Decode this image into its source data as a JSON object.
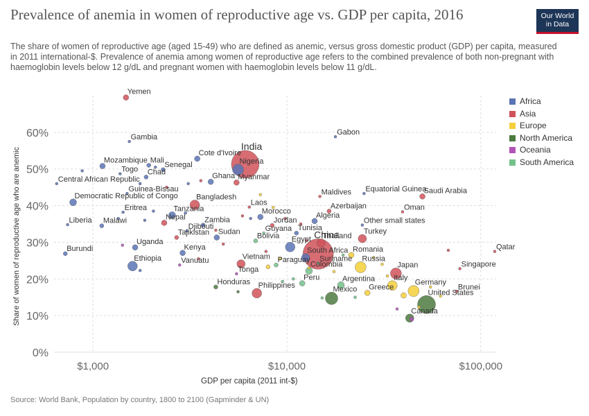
{
  "header": {
    "title": "Prevalence of anemia in women of reproductive age vs. GDP per capita, 2016",
    "subtitle": "The share of women of reproductive age (aged 15-49) who are defined as anemic, versus gross domestic product (GDP) per capita, measured in 2011 international-$. Prevalence of anemia among women of reproductive age refers to the combined prevalence of both non-pregnant with haemoglobin levels below 12 g/dL and pregnant women with haemoglobin levels below 11 g/dL.",
    "logo_line1": "Our World",
    "logo_line2": "in Data"
  },
  "footer": {
    "source": "Source: World Bank, Population by country, 1800 to 2100 (Gapminder & UN)"
  },
  "chart_data": {
    "type": "scatter",
    "title": "Prevalence of anemia in women of reproductive age vs. GDP per capita, 2016",
    "xlabel": "GDP per capita (2011 int-$)",
    "ylabel": "Share of women of reproductive age who are anemic",
    "x_scale": "log",
    "xlim": [
      630,
      120000
    ],
    "ylim": [
      0,
      70
    ],
    "x_ticks": [
      1000,
      10000,
      100000
    ],
    "x_tick_labels": [
      "$1,000",
      "$10,000",
      "$100,000"
    ],
    "y_ticks": [
      0,
      10,
      20,
      30,
      40,
      50,
      60
    ],
    "y_tick_labels": [
      "0%",
      "10%",
      "20%",
      "30%",
      "40%",
      "50%",
      "60%"
    ],
    "grid": true,
    "legend_position": "right",
    "series": [
      {
        "name": "Africa",
        "color": "#5b74b6"
      },
      {
        "name": "Asia",
        "color": "#d1525a"
      },
      {
        "name": "Europe",
        "color": "#f5cf3a"
      },
      {
        "name": "North America",
        "color": "#4c7a3f"
      },
      {
        "name": "Oceania",
        "color": "#b153b7"
      },
      {
        "name": "South America",
        "color": "#74c18a"
      }
    ],
    "points": [
      {
        "label": "Yemen",
        "x": 1480,
        "y": 69.5,
        "region": "Asia",
        "size": 4
      },
      {
        "label": "Gambia",
        "x": 1540,
        "y": 57.5,
        "region": "Africa",
        "size": 2
      },
      {
        "label": "Gabon",
        "x": 17800,
        "y": 58.8,
        "region": "Africa",
        "size": 2
      },
      {
        "label": "India",
        "x": 6100,
        "y": 51.3,
        "region": "Asia",
        "size": 20
      },
      {
        "label": "Cote d'Ivoire",
        "x": 3450,
        "y": 52.8,
        "region": "Africa",
        "size": 4
      },
      {
        "label": "Nigeria",
        "x": 5600,
        "y": 49.8,
        "region": "Africa",
        "size": 8
      },
      {
        "label": "Mozambique",
        "x": 1120,
        "y": 50.8,
        "region": "Africa",
        "size": 4
      },
      {
        "label": "Mali",
        "x": 1940,
        "y": 51.0,
        "region": "Africa",
        "size": 3
      },
      {
        "label": "Senegal",
        "x": 2300,
        "y": 49.8,
        "region": "Africa",
        "size": 3
      },
      {
        "label": "Togo",
        "x": 1380,
        "y": 48.7,
        "region": "Africa",
        "size": 2
      },
      {
        "label": "Chad",
        "x": 1880,
        "y": 47.8,
        "region": "Africa",
        "size": 3
      },
      {
        "label": "Ghana",
        "x": 4050,
        "y": 46.5,
        "region": "Africa",
        "size": 4
      },
      {
        "label": "Myanmar",
        "x": 5500,
        "y": 46.3,
        "region": "Asia",
        "size": 4
      },
      {
        "label": "Central African Republic",
        "x": 650,
        "y": 46.0,
        "region": "Africa",
        "size": 2
      },
      {
        "label": "Guinea-Bissau",
        "x": 1500,
        "y": 43.3,
        "region": "Africa",
        "size": 2
      },
      {
        "label": "Democratic Republic of Congo",
        "x": 790,
        "y": 40.9,
        "region": "Africa",
        "size": 5
      },
      {
        "label": "Bangladesh",
        "x": 3350,
        "y": 40.2,
        "region": "Asia",
        "size": 7
      },
      {
        "label": "Laos",
        "x": 6400,
        "y": 39.6,
        "region": "Asia",
        "size": 2
      },
      {
        "label": "Maldives",
        "x": 14800,
        "y": 42.5,
        "region": "Asia",
        "size": 2
      },
      {
        "label": "Equatorial Guinea",
        "x": 25000,
        "y": 43.3,
        "region": "Africa",
        "size": 2
      },
      {
        "label": "Saudi Arabia",
        "x": 50000,
        "y": 42.5,
        "region": "Asia",
        "size": 4
      },
      {
        "label": "Azerbaijan",
        "x": 16500,
        "y": 38.5,
        "region": "Asia",
        "size": 3
      },
      {
        "label": "Oman",
        "x": 39500,
        "y": 38.3,
        "region": "Asia",
        "size": 2
      },
      {
        "label": "Eritrea",
        "x": 1430,
        "y": 38.2,
        "region": "Africa",
        "size": 2
      },
      {
        "label": "Tanzania",
        "x": 2560,
        "y": 37.4,
        "region": "Africa",
        "size": 5
      },
      {
        "label": "Morocco",
        "x": 7300,
        "y": 36.9,
        "region": "Africa",
        "size": 4
      },
      {
        "label": "Algeria",
        "x": 13900,
        "y": 35.8,
        "region": "Africa",
        "size": 4
      },
      {
        "label": "Nepal",
        "x": 2330,
        "y": 35.3,
        "region": "Asia",
        "size": 4
      },
      {
        "label": "Liberia",
        "x": 740,
        "y": 34.8,
        "region": "Africa",
        "size": 2
      },
      {
        "label": "Malawi",
        "x": 1110,
        "y": 34.5,
        "region": "Africa",
        "size": 3
      },
      {
        "label": "Zambia",
        "x": 3700,
        "y": 34.7,
        "region": "Africa",
        "size": 3
      },
      {
        "label": "Jordan",
        "x": 8400,
        "y": 34.6,
        "region": "Asia",
        "size": 3
      },
      {
        "label": "Other small states",
        "x": 24500,
        "y": 34.7,
        "region": "Africa",
        "size": 2
      },
      {
        "label": "Djibouti",
        "x": 3050,
        "y": 33.1,
        "region": "Africa",
        "size": 2
      },
      {
        "label": "Guyana",
        "x": 7600,
        "y": 32.5,
        "region": "South America",
        "size": 2
      },
      {
        "label": "Tunisia",
        "x": 11200,
        "y": 32.5,
        "region": "Africa",
        "size": 3
      },
      {
        "label": "Turkey",
        "x": 24500,
        "y": 31.0,
        "region": "Asia",
        "size": 6
      },
      {
        "label": "Tajikistan",
        "x": 2700,
        "y": 31.3,
        "region": "Asia",
        "size": 3
      },
      {
        "label": "Sudan",
        "x": 4350,
        "y": 31.3,
        "region": "Africa",
        "size": 4
      },
      {
        "label": "Bolivia",
        "x": 6900,
        "y": 30.4,
        "region": "South America",
        "size": 3
      },
      {
        "label": "Egypt",
        "x": 10400,
        "y": 28.7,
        "region": "Africa",
        "size": 7
      },
      {
        "label": "China",
        "x": 14500,
        "y": 26.8,
        "region": "Asia",
        "size": 22
      },
      {
        "label": "Thailand",
        "x": 15000,
        "y": 29.8,
        "region": "Asia",
        "size": 6
      },
      {
        "label": "Uganda",
        "x": 1650,
        "y": 28.6,
        "region": "Africa",
        "size": 4
      },
      {
        "label": "Kenya",
        "x": 2900,
        "y": 27.1,
        "region": "Africa",
        "size": 4
      },
      {
        "label": "Burundi",
        "x": 720,
        "y": 26.9,
        "region": "Africa",
        "size": 3
      },
      {
        "label": "South Africa",
        "x": 12500,
        "y": 25.8,
        "region": "Africa",
        "size": 6
      },
      {
        "label": "Suriname",
        "x": 14500,
        "y": 24.3,
        "region": "South America",
        "size": 2
      },
      {
        "label": "Romania",
        "x": 21500,
        "y": 26.5,
        "region": "Europe",
        "size": 4
      },
      {
        "label": "Qatar",
        "x": 118000,
        "y": 27.5,
        "region": "Asia",
        "size": 2
      },
      {
        "label": "Russia",
        "x": 24000,
        "y": 23.2,
        "region": "Europe",
        "size": 8
      },
      {
        "label": "Ethiopia",
        "x": 1600,
        "y": 23.5,
        "region": "Africa",
        "size": 7
      },
      {
        "label": "Vietnam",
        "x": 5800,
        "y": 24.1,
        "region": "Asia",
        "size": 6
      },
      {
        "label": "Paraguay",
        "x": 8800,
        "y": 23.8,
        "region": "South America",
        "size": 3
      },
      {
        "label": "Singapore",
        "x": 78000,
        "y": 22.8,
        "region": "Asia",
        "size": 2
      },
      {
        "label": "Japan",
        "x": 36500,
        "y": 21.5,
        "region": "Asia",
        "size": 8
      },
      {
        "label": "Colombia",
        "x": 13000,
        "y": 22.2,
        "region": "South America",
        "size": 5
      },
      {
        "label": "Tonga",
        "x": 5500,
        "y": 21.4,
        "region": "Oceania",
        "size": 2
      },
      {
        "label": "Vanuatu",
        "x": 2800,
        "y": 23.8,
        "region": "Oceania",
        "size": 2
      },
      {
        "label": "Peru",
        "x": 12000,
        "y": 18.8,
        "region": "South America",
        "size": 4
      },
      {
        "label": "Honduras",
        "x": 4300,
        "y": 17.8,
        "region": "North America",
        "size": 3
      },
      {
        "label": "Argentina",
        "x": 19000,
        "y": 18.3,
        "region": "South America",
        "size": 5
      },
      {
        "label": "Philippines",
        "x": 7000,
        "y": 16.1,
        "region": "Asia",
        "size": 7
      },
      {
        "label": "Italy",
        "x": 35000,
        "y": 18.2,
        "region": "Europe",
        "size": 7
      },
      {
        "label": "Germany",
        "x": 45000,
        "y": 16.7,
        "region": "Europe",
        "size": 8
      },
      {
        "label": "Brunei",
        "x": 75000,
        "y": 16.6,
        "region": "Asia",
        "size": 2
      },
      {
        "label": "Greece",
        "x": 26000,
        "y": 16.2,
        "region": "Europe",
        "size": 4
      },
      {
        "label": "Mexico",
        "x": 17000,
        "y": 14.7,
        "region": "North America",
        "size": 9
      },
      {
        "label": "United States",
        "x": 52500,
        "y": 13.0,
        "region": "North America",
        "size": 13
      },
      {
        "label": "Canada",
        "x": 43000,
        "y": 9.3,
        "region": "North America",
        "size": 6
      }
    ],
    "unlabeled_points": [
      {
        "x": 880,
        "y": 49.5,
        "region": "Africa",
        "size": 2
      },
      {
        "x": 2100,
        "y": 50.5,
        "region": "Africa",
        "size": 2
      },
      {
        "x": 1750,
        "y": 46.0,
        "region": "Africa",
        "size": 2
      },
      {
        "x": 2400,
        "y": 45.0,
        "region": "Asia",
        "size": 2
      },
      {
        "x": 3100,
        "y": 46.0,
        "region": "Africa",
        "size": 2
      },
      {
        "x": 3600,
        "y": 46.8,
        "region": "Asia",
        "size": 2
      },
      {
        "x": 1350,
        "y": 36.5,
        "region": "Africa",
        "size": 2
      },
      {
        "x": 1850,
        "y": 36.0,
        "region": "Africa",
        "size": 2
      },
      {
        "x": 2050,
        "y": 38.5,
        "region": "Africa",
        "size": 2
      },
      {
        "x": 3000,
        "y": 38.0,
        "region": "Africa",
        "size": 2
      },
      {
        "x": 4300,
        "y": 33.3,
        "region": "Asia",
        "size": 2
      },
      {
        "x": 5900,
        "y": 37.2,
        "region": "Asia",
        "size": 2
      },
      {
        "x": 6500,
        "y": 36.5,
        "region": "Africa",
        "size": 2
      },
      {
        "x": 8500,
        "y": 39.5,
        "region": "Europe",
        "size": 2
      },
      {
        "x": 7300,
        "y": 43.0,
        "region": "Europe",
        "size": 2
      },
      {
        "x": 9800,
        "y": 36.5,
        "region": "Asia",
        "size": 2
      },
      {
        "x": 11800,
        "y": 35.0,
        "region": "Asia",
        "size": 2
      },
      {
        "x": 12600,
        "y": 30.5,
        "region": "Asia",
        "size": 2
      },
      {
        "x": 1420,
        "y": 29.2,
        "region": "Oceania",
        "size": 2
      },
      {
        "x": 1750,
        "y": 22.3,
        "region": "Africa",
        "size": 2
      },
      {
        "x": 3500,
        "y": 25.5,
        "region": "Asia",
        "size": 2
      },
      {
        "x": 4700,
        "y": 29.5,
        "region": "Asia",
        "size": 2
      },
      {
        "x": 7800,
        "y": 27.5,
        "region": "Asia",
        "size": 2
      },
      {
        "x": 9200,
        "y": 25.5,
        "region": "Europe",
        "size": 2
      },
      {
        "x": 8000,
        "y": 23.3,
        "region": "Europe",
        "size": 3
      },
      {
        "x": 10800,
        "y": 20.0,
        "region": "South America",
        "size": 2
      },
      {
        "x": 13000,
        "y": 23.0,
        "region": "Europe",
        "size": 2
      },
      {
        "x": 17500,
        "y": 22.0,
        "region": "Europe",
        "size": 2
      },
      {
        "x": 19500,
        "y": 26.5,
        "region": "South America",
        "size": 2
      },
      {
        "x": 28000,
        "y": 25.8,
        "region": "Europe",
        "size": 2
      },
      {
        "x": 31000,
        "y": 24.0,
        "region": "Europe",
        "size": 2
      },
      {
        "x": 33000,
        "y": 20.8,
        "region": "Europe",
        "size": 2
      },
      {
        "x": 40000,
        "y": 15.5,
        "region": "Europe",
        "size": 4
      },
      {
        "x": 55000,
        "y": 17.8,
        "region": "Europe",
        "size": 2
      },
      {
        "x": 62000,
        "y": 15.3,
        "region": "Europe",
        "size": 2
      },
      {
        "x": 48000,
        "y": 12.3,
        "region": "Europe",
        "size": 2
      },
      {
        "x": 37000,
        "y": 11.8,
        "region": "Oceania",
        "size": 2
      },
      {
        "x": 44000,
        "y": 9.0,
        "region": "Oceania",
        "size": 3
      },
      {
        "x": 15200,
        "y": 14.8,
        "region": "South America",
        "size": 2
      },
      {
        "x": 22500,
        "y": 15.0,
        "region": "South America",
        "size": 2
      },
      {
        "x": 5600,
        "y": 16.5,
        "region": "North America",
        "size": 2
      },
      {
        "x": 9500,
        "y": 19.3,
        "region": "South America",
        "size": 2
      },
      {
        "x": 68000,
        "y": 27.8,
        "region": "Asia",
        "size": 2
      }
    ]
  }
}
